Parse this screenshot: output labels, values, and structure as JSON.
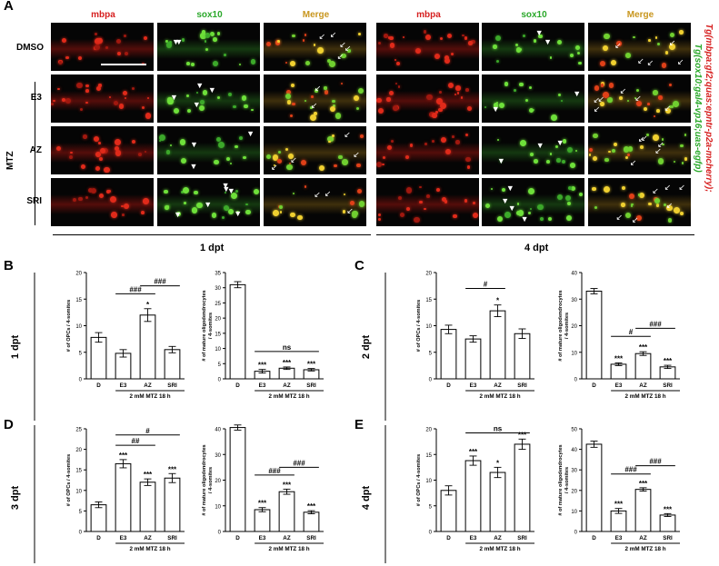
{
  "panel_A": {
    "letter": "A",
    "columns": [
      "mbpa",
      "sox10",
      "Merge",
      "mbpa",
      "sox10",
      "Merge"
    ],
    "rows": [
      "DMSO",
      "E3",
      "AZ",
      "SRI"
    ],
    "group_label": "MTZ",
    "bottom_labels": [
      "1 dpt",
      "4 dpt"
    ],
    "transgene_red": "Tg(mbpa:gf2;quas:epntr-p2a-mcherry);",
    "transgene_green": "Tg(sox10:gal4-vp16;uas-egfp)"
  },
  "colors": {
    "red": "#d61f1f",
    "green": "#2aa82a",
    "merge": "#c8961e"
  },
  "chart_data": [
    {
      "panel": "B",
      "timepoint": "1 dpt",
      "type": "bar",
      "ylabel": "# of OPCs / 4-somites",
      "xlabel": "2 mM MTZ 18 h",
      "categories": [
        "D",
        "E3",
        "AZ",
        "SRI"
      ],
      "values": [
        7.8,
        4.8,
        12,
        5.5
      ],
      "errors": [
        0.9,
        0.7,
        1.2,
        0.6
      ],
      "ylim": [
        0,
        20
      ],
      "yticks": [
        "0",
        "5",
        "10",
        "15",
        "20"
      ],
      "marks": [
        "",
        "",
        "*",
        ""
      ],
      "brackets": [
        {
          "from": 1,
          "to": 2,
          "label": "###",
          "level": 16
        },
        {
          "from": 2,
          "to": 3,
          "label": "###",
          "level": 17.5
        }
      ]
    },
    {
      "panel": "B",
      "timepoint": "1 dpt",
      "type": "bar",
      "ylabel": "# of mature oligodendrocytes / 4-somites",
      "xlabel": "2 mM MTZ 18 h",
      "categories": [
        "D",
        "E3",
        "AZ",
        "SRI"
      ],
      "values": [
        31,
        2.5,
        3.5,
        3
      ],
      "errors": [
        1,
        0.6,
        0.4,
        0.4
      ],
      "ylim": [
        0,
        35
      ],
      "yticks": [
        "0",
        "5",
        "10",
        "15",
        "20",
        "25",
        "30",
        "35"
      ],
      "marks": [
        "",
        "***",
        "***",
        "***"
      ],
      "brackets": [
        {
          "from": 1,
          "to": 3,
          "label": "ns",
          "level": 9
        }
      ]
    },
    {
      "panel": "C",
      "timepoint": "2 dpt",
      "type": "bar",
      "ylabel": "# of OPCs / 4-somites",
      "xlabel": "2 mM MTZ 18 h",
      "categories": [
        "D",
        "E3",
        "AZ",
        "SRI"
      ],
      "values": [
        9.3,
        7.5,
        12.8,
        8.5
      ],
      "errors": [
        0.8,
        0.6,
        1.1,
        0.9
      ],
      "ylim": [
        0,
        20
      ],
      "yticks": [
        "0",
        "5",
        "10",
        "15",
        "20"
      ],
      "marks": [
        "",
        "",
        "*",
        ""
      ],
      "brackets": [
        {
          "from": 1,
          "to": 2,
          "label": "#",
          "level": 17
        }
      ]
    },
    {
      "panel": "C",
      "timepoint": "2 dpt",
      "type": "bar",
      "ylabel": "# of mature oligodendrocytes / 4-somites",
      "xlabel": "2 mM MTZ 18 h",
      "categories": [
        "D",
        "E3",
        "AZ",
        "SRI"
      ],
      "values": [
        33,
        5.5,
        9.5,
        4.5
      ],
      "errors": [
        1,
        0.5,
        0.7,
        0.6
      ],
      "ylim": [
        0,
        40
      ],
      "yticks": [
        "0",
        "10",
        "20",
        "30",
        "40"
      ],
      "marks": [
        "",
        "***",
        "***",
        "***"
      ],
      "brackets": [
        {
          "from": 1,
          "to": 2,
          "label": "#",
          "level": 16
        },
        {
          "from": 2,
          "to": 3,
          "label": "###",
          "level": 19
        }
      ]
    },
    {
      "panel": "D",
      "timepoint": "3 dpt",
      "type": "bar",
      "ylabel": "# of OPCs / 4-somites",
      "xlabel": "2 mM MTZ 18 h",
      "categories": [
        "D",
        "E3",
        "AZ",
        "SRI"
      ],
      "values": [
        6.5,
        16.5,
        12,
        13
      ],
      "errors": [
        0.7,
        1,
        0.8,
        1.1
      ],
      "ylim": [
        0,
        25
      ],
      "yticks": [
        "0",
        "5",
        "10",
        "15",
        "20",
        "25"
      ],
      "marks": [
        "",
        "***",
        "***",
        "***"
      ],
      "brackets": [
        {
          "from": 1,
          "to": 2,
          "label": "##",
          "level": 21
        },
        {
          "from": 1,
          "to": 3,
          "label": "#",
          "level": 23.5
        }
      ]
    },
    {
      "panel": "D",
      "timepoint": "3 dpt",
      "type": "bar",
      "ylabel": "# of mature oligodendrocytes / 4-somites",
      "xlabel": "2 mM MTZ 18 h",
      "categories": [
        "D",
        "E3",
        "AZ",
        "SRI"
      ],
      "values": [
        40.5,
        8.5,
        15.5,
        7.5
      ],
      "errors": [
        1,
        0.8,
        1,
        0.6
      ],
      "ylim": [
        0,
        40
      ],
      "yticks": [
        "0",
        "10",
        "20",
        "30",
        "40"
      ],
      "marks": [
        "",
        "***",
        "***",
        "***"
      ],
      "brackets": [
        {
          "from": 1,
          "to": 2,
          "label": "###",
          "level": 22
        },
        {
          "from": 2,
          "to": 3,
          "label": "###",
          "level": 25
        }
      ]
    },
    {
      "panel": "E",
      "timepoint": "4 dpt",
      "type": "bar",
      "ylabel": "# of OPCs / 4-somites",
      "xlabel": "2 mM MTZ 18 h",
      "categories": [
        "D",
        "E3",
        "AZ",
        "SRI"
      ],
      "values": [
        8,
        13.8,
        11.5,
        17
      ],
      "errors": [
        0.9,
        0.9,
        1,
        1
      ],
      "ylim": [
        0,
        20
      ],
      "yticks": [
        "0",
        "5",
        "10",
        "15",
        "20"
      ],
      "marks": [
        "",
        "***",
        "*",
        "***"
      ],
      "brackets": [
        {
          "from": 1,
          "to": 3,
          "label": "ns",
          "level": 19.2
        }
      ]
    },
    {
      "panel": "E",
      "timepoint": "4 dpt",
      "type": "bar",
      "ylabel": "# of mature oligodendrocytes / 4-somites",
      "xlabel": "2 mM MTZ 18 h",
      "categories": [
        "D",
        "E3",
        "AZ",
        "SRI"
      ],
      "values": [
        42.5,
        10,
        20.5,
        8
      ],
      "errors": [
        1.5,
        1.2,
        0.8,
        0.7
      ],
      "ylim": [
        0,
        50
      ],
      "yticks": [
        "0",
        "10",
        "20",
        "30",
        "40",
        "50"
      ],
      "marks": [
        "",
        "***",
        "***",
        "***"
      ],
      "brackets": [
        {
          "from": 1,
          "to": 2,
          "label": "###",
          "level": 28
        },
        {
          "from": 2,
          "to": 3,
          "label": "###",
          "level": 32
        }
      ]
    }
  ]
}
